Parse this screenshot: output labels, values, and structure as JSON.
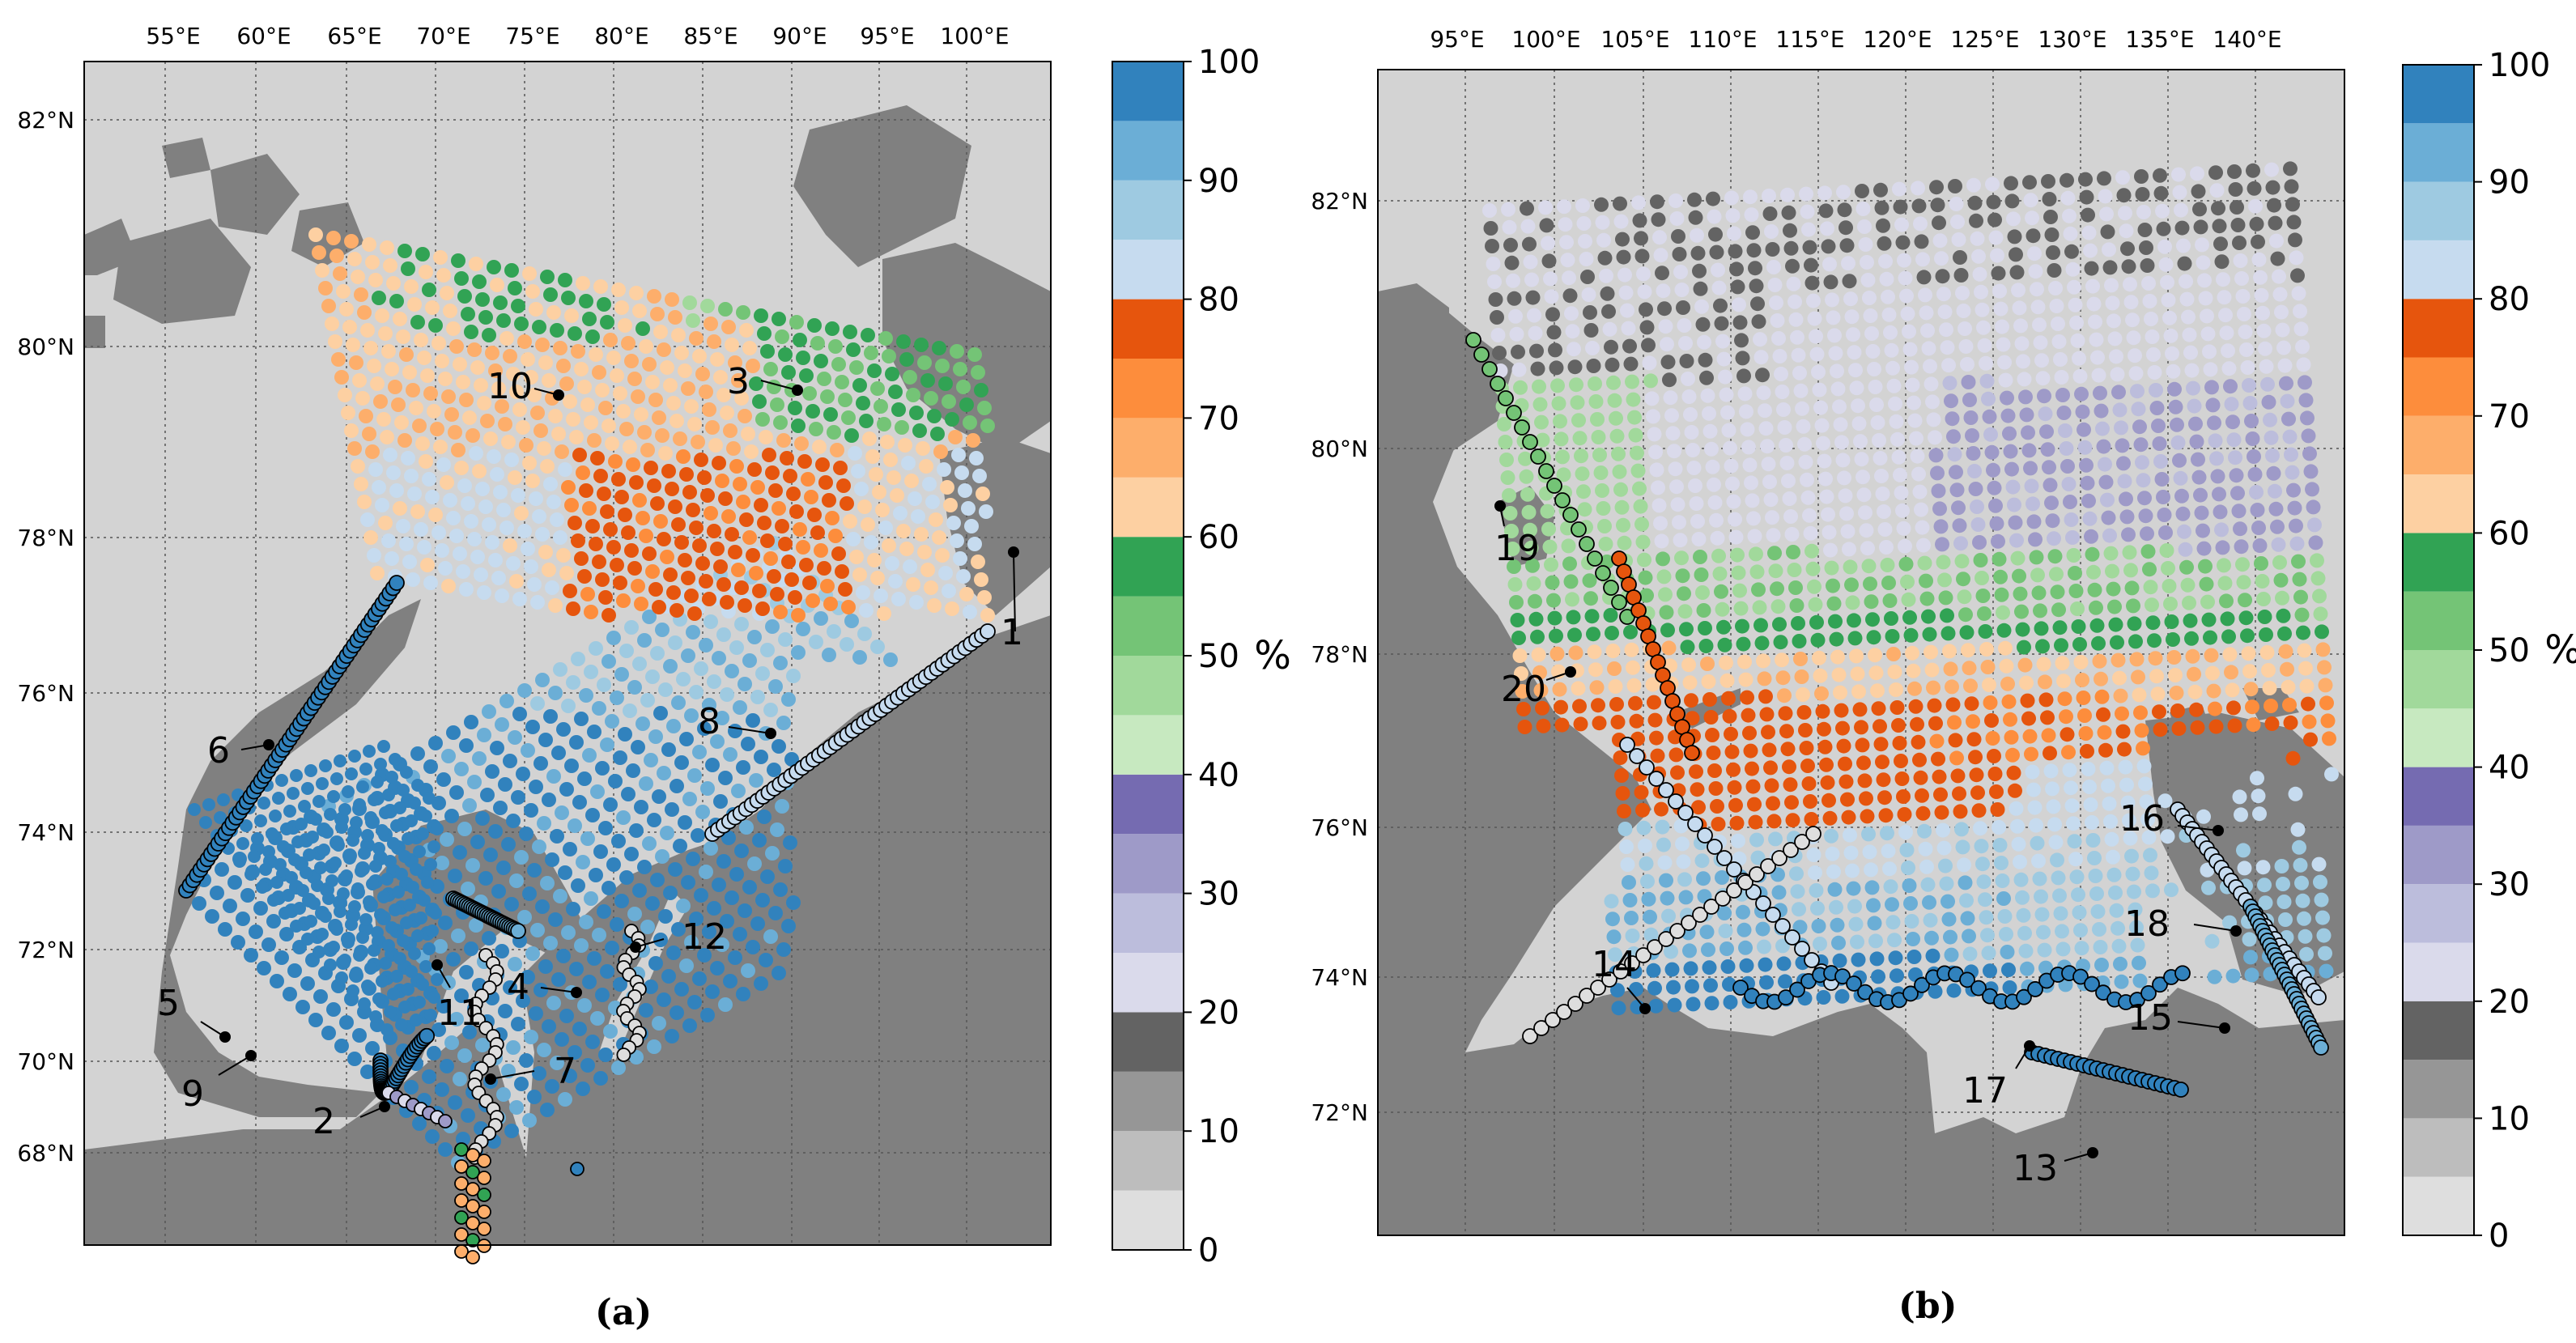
{
  "panels": [
    {
      "caption": "(a)",
      "lon_ticks": [
        "55°E",
        "60°E",
        "65°E",
        "70°E",
        "75°E",
        "80°E",
        "85°E",
        "90°E",
        "95°E",
        "100°E"
      ],
      "lat_ticks": [
        "68°N",
        "70°N",
        "72°N",
        "74°N",
        "76°N",
        "78°N",
        "80°N",
        "82°N"
      ],
      "stations": [
        "1",
        "2",
        "3",
        "4",
        "5",
        "6",
        "7",
        "8",
        "9",
        "10",
        "11",
        "12"
      ],
      "colorbar": {
        "unit": "%",
        "ticks": [
          "0",
          "10",
          "20",
          "30",
          "40",
          "50",
          "60",
          "70",
          "80",
          "90",
          "100"
        ]
      }
    },
    {
      "caption": "(b)",
      "lon_ticks": [
        "95°E",
        "100°E",
        "105°E",
        "110°E",
        "115°E",
        "120°E",
        "125°E",
        "130°E",
        "135°E",
        "140°E"
      ],
      "lat_ticks": [
        "72°N",
        "74°N",
        "76°N",
        "78°N",
        "80°N",
        "82°N"
      ],
      "stations": [
        "13",
        "14",
        "15",
        "16",
        "17",
        "18",
        "19",
        "20"
      ],
      "colorbar": {
        "unit": "%",
        "ticks": [
          "0",
          "10",
          "20",
          "30",
          "40",
          "50",
          "60",
          "70",
          "80",
          "90",
          "100"
        ]
      }
    }
  ],
  "colorbar_colors": [
    "#dedede",
    "#bdbdbd",
    "#969696",
    "#636363",
    "#dadaeb",
    "#bcbddc",
    "#9e9ac8",
    "#756bb1",
    "#c7e9c0",
    "#a1d99b",
    "#74c476",
    "#31a354",
    "#fdd0a2",
    "#fdae6b",
    "#fd8d3c",
    "#e6550d",
    "#c6dbef",
    "#9ecae1",
    "#6baed6",
    "#3182bd"
  ],
  "map_colors": {
    "ocean": "#d3d3d3",
    "land": "#808080",
    "grid": "#555555"
  }
}
